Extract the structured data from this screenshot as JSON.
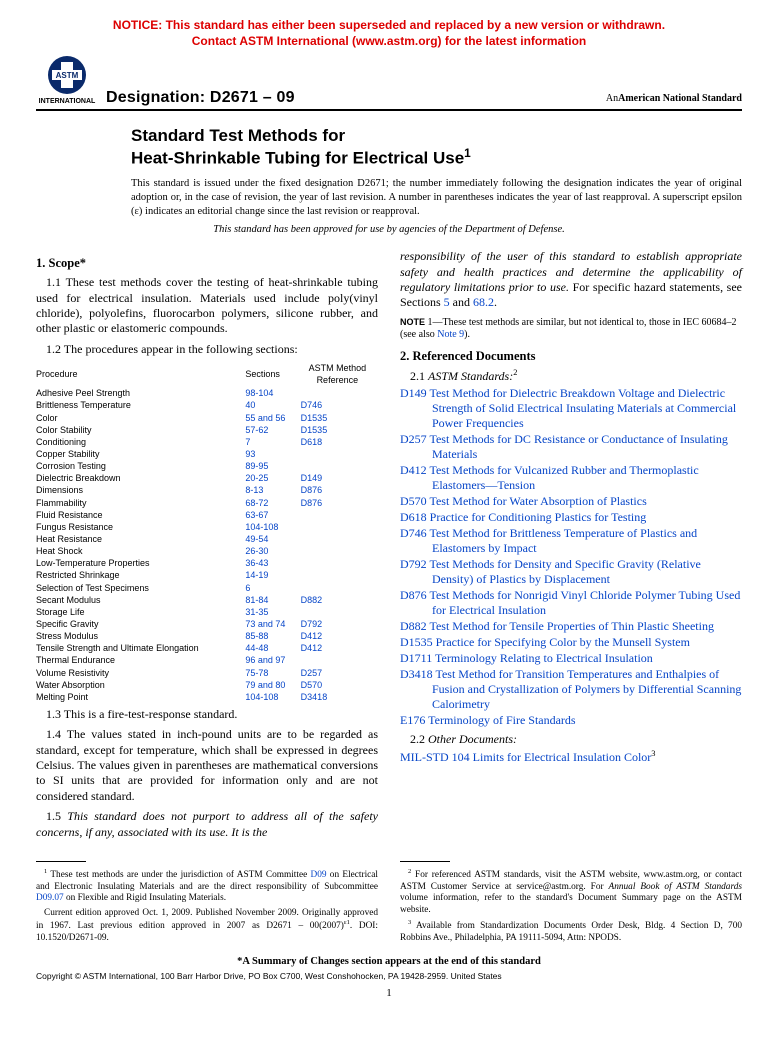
{
  "notice_l1": "NOTICE: This standard has either been superseded and replaced by a new version or withdrawn.",
  "notice_l2": "Contact ASTM International (www.astm.org) for the latest information",
  "logo_text": "INTERNATIONAL",
  "designation_label": "Designation: D2671 – 09",
  "ans": "American National Standard",
  "title_l1": "Standard Test Methods for",
  "title_l2": "Heat-Shrinkable Tubing for Electrical Use",
  "title_sup": "1",
  "issue": "This standard is issued under the fixed designation D2671; the number immediately following the designation indicates the year of original adoption or, in the case of revision, the year of last revision. A number in parentheses indicates the year of last reapproval. A superscript epsilon (ε) indicates an editorial change since the last revision or reapproval.",
  "dod": "This standard has been approved for use by agencies of the Department of Defense.",
  "scope_h": "1. Scope*",
  "p11": "1.1 These test methods cover the testing of heat-shrinkable tubing used for electrical insulation. Materials used include poly(vinyl chloride), polyolefins, fluorocarbon polymers, silicone rubber, and other plastic or elastomeric compounds.",
  "p12": "1.2 The procedures appear in the following sections:",
  "tbl_h1": "Procedure",
  "tbl_h2": "Sections",
  "tbl_h3a": "ASTM Method",
  "tbl_h3b": "Reference",
  "proc": [
    [
      "Adhesive Peel Strength",
      "98-104",
      ""
    ],
    [
      "Brittleness Temperature",
      "40",
      "D746"
    ],
    [
      "Color",
      "55 and 56",
      "D1535"
    ],
    [
      "Color Stability",
      "57-62",
      "D1535"
    ],
    [
      "Conditioning",
      "7",
      "D618"
    ],
    [
      "Copper Stability",
      "93",
      ""
    ],
    [
      "Corrosion Testing",
      "89-95",
      ""
    ],
    [
      "Dielectric Breakdown",
      "20-25",
      "D149"
    ],
    [
      "Dimensions",
      "8-13",
      "D876"
    ],
    [
      "Flammability",
      "68-72",
      "D876"
    ],
    [
      "Fluid Resistance",
      "63-67",
      ""
    ],
    [
      "Fungus Resistance",
      "104-108",
      ""
    ],
    [
      "Heat Resistance",
      "49-54",
      ""
    ],
    [
      "Heat Shock",
      "26-30",
      ""
    ],
    [
      "Low-Temperature Properties",
      "36-43",
      ""
    ],
    [
      "Restricted Shrinkage",
      "14-19",
      ""
    ],
    [
      "Selection of Test Specimens",
      "6",
      ""
    ],
    [
      "Secant Modulus",
      "81-84",
      "D882"
    ],
    [
      "Storage Life",
      "31-35",
      ""
    ],
    [
      "Specific Gravity",
      "73 and 74",
      "D792"
    ],
    [
      "Stress Modulus",
      "85-88",
      "D412"
    ],
    [
      "Tensile Strength and Ultimate Elongation",
      "44-48",
      "D412"
    ],
    [
      "Thermal Endurance",
      "96 and 97",
      ""
    ],
    [
      "Volume Resistivity",
      "75-78",
      "D257"
    ],
    [
      "Water Absorption",
      "79 and 80",
      "D570"
    ],
    [
      "Melting Point",
      "104-108",
      "D3418"
    ]
  ],
  "p13": "1.3 This is a fire-test-response standard.",
  "p14": "1.4 The values stated in inch-pound units are to be regarded as standard, except for temperature, which shall be expressed in degrees Celsius. The values given in parentheses are mathematical conversions to SI units that are provided for information only and are not considered standard.",
  "p15a": "1.5 ",
  "p15b": "This standard does not purport to address all of the safety concerns, if any, associated with its use. It is the ",
  "p15c": "responsibility of the user of this standard to establish appropriate safety and health practices and determine the applicability of regulatory limitations prior to use.",
  "p15d": " For specific hazard statements, see Sections ",
  "p15e": "5",
  "p15f": " and ",
  "p15g": "68.2",
  "p15h": ".",
  "note1a": "NOTE",
  "note1b": " 1—These test methods are similar, but not identical to, those in IEC 60684–2 (see also ",
  "note1c": "Note 9",
  "note1d": ").",
  "refh": "2. Referenced Documents",
  "ref_sub1": "2.1 ",
  "ref_sub1i": "ASTM Standards:",
  "ref_sub1s": "2",
  "refs": [
    [
      "D149",
      "Test Method for Dielectric Breakdown Voltage and Dielectric Strength of Solid Electrical Insulating Materials at Commercial Power Frequencies"
    ],
    [
      "D257",
      "Test Methods for DC Resistance or Conductance of Insulating Materials"
    ],
    [
      "D412",
      "Test Methods for Vulcanized Rubber and Thermoplastic Elastomers—Tension"
    ],
    [
      "D570",
      "Test Method for Water Absorption of Plastics"
    ],
    [
      "D618",
      "Practice for Conditioning Plastics for Testing"
    ],
    [
      "D746",
      "Test Method for Brittleness Temperature of Plastics and Elastomers by Impact"
    ],
    [
      "D792",
      "Test Methods for Density and Specific Gravity (Relative Density) of Plastics by Displacement"
    ],
    [
      "D876",
      "Test Methods for Nonrigid Vinyl Chloride Polymer Tubing Used for Electrical Insulation"
    ],
    [
      "D882",
      "Test Method for Tensile Properties of Thin Plastic Sheeting"
    ],
    [
      "D1535",
      "Practice for Specifying Color by the Munsell System"
    ],
    [
      "D1711",
      "Terminology Relating to Electrical Insulation"
    ],
    [
      "D3418",
      "Test Method for Transition Temperatures and Enthalpies of Fusion and Crystallization of Polymers by Differential Scanning Calorimetry"
    ],
    [
      "E176",
      "Terminology of Fire Standards"
    ]
  ],
  "ref_sub2": "2.2 ",
  "ref_sub2i": "Other Documents:",
  "refs2": [
    [
      "MIL-STD 104",
      "Limits for Electrical Insulation Color",
      "3"
    ]
  ],
  "fn1a": "1",
  "fn1b": " These test methods are under the jurisdiction of ASTM Committee ",
  "fn1c": "D09",
  "fn1d": " on Electrical and Electronic Insulating Materials and are the direct responsibility of Subcommittee ",
  "fn1e": "D09.07",
  "fn1f": " on Flexible and Rigid Insulating Materials.",
  "fn1g": "Current edition approved Oct. 1, 2009. Published November 2009. Originally approved in 1967. Last previous edition approved in 2007 as D2671 – 00(2007)",
  "fn1h": "ε1",
  "fn1i": ". DOI: 10.1520/D2671-09.",
  "fn2a": "2",
  "fn2b": " For referenced ASTM standards, visit the ASTM website, www.astm.org, or contact ASTM Customer Service at service@astm.org. For ",
  "fn2c": "Annual Book of ASTM Standards",
  "fn2d": " volume information, refer to the standard's Document Summary page on the ASTM website.",
  "fn3a": "3",
  "fn3b": " Available from Standardization Documents Order Desk, Bldg. 4 Section D, 700 Robbins Ave., Philadelphia, PA 19111-5094, Attn: NPODS.",
  "summary": "*A Summary of Changes section appears at the end of this standard",
  "copyright": "Copyright © ASTM International, 100 Barr Harbor Drive, PO Box C700, West Conshohocken, PA 19428-2959. United States",
  "pageno": "1"
}
